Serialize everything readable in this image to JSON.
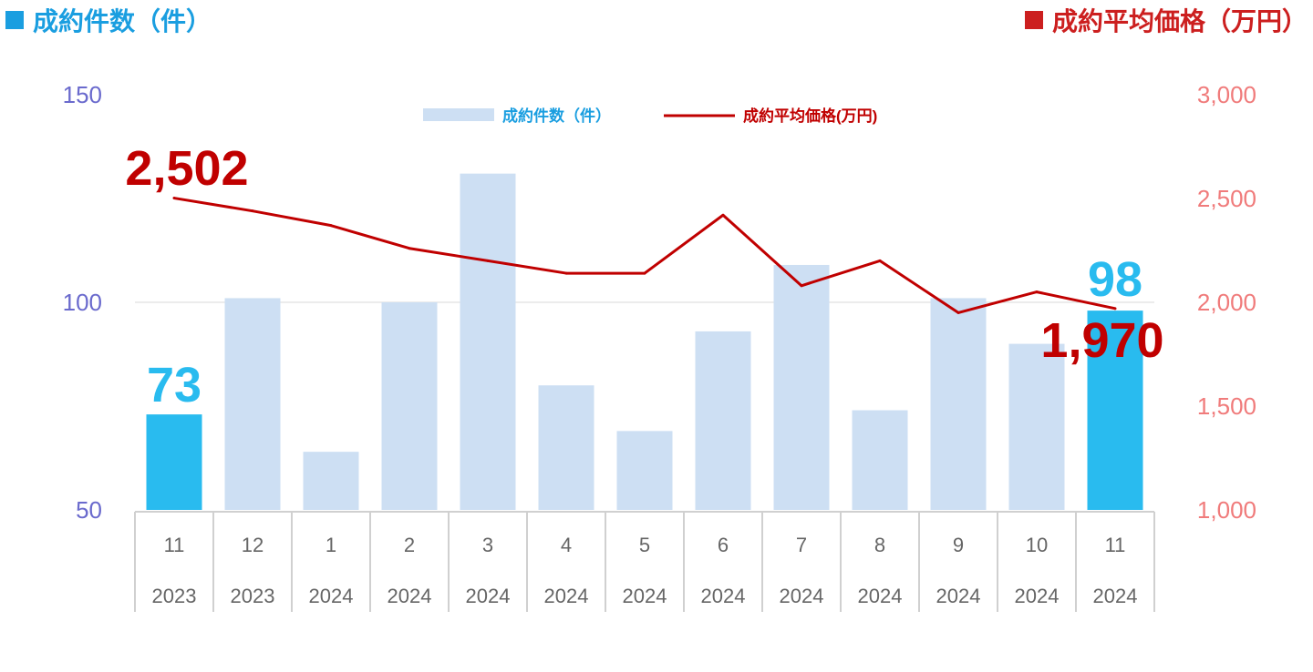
{
  "headers": {
    "left": "成約件数（件）",
    "right": "成約平均価格（万円）"
  },
  "colors": {
    "bar": "#cddff3",
    "bar_highlight": "#29bbef",
    "line": "#c00000",
    "left_axis": "#6a6acd",
    "right_axis": "#f07b7b",
    "left_header": "#1a9ee0",
    "right_header": "#cc1f1f"
  },
  "legend": {
    "bar_label": "成約件数（件）",
    "line_label": "成約平均価格(万円)"
  },
  "chart_data": {
    "type": "bar",
    "categories": [
      "11",
      "12",
      "1",
      "2",
      "3",
      "4",
      "5",
      "6",
      "7",
      "8",
      "9",
      "10",
      "11"
    ],
    "years": [
      "2023",
      "2023",
      "2024",
      "2024",
      "2024",
      "2024",
      "2024",
      "2024",
      "2024",
      "2024",
      "2024",
      "2024",
      "2024"
    ],
    "series": [
      {
        "name": "成約件数（件）",
        "type": "bar",
        "axis": "left",
        "values": [
          73,
          101,
          64,
          100,
          131,
          80,
          69,
          93,
          109,
          74,
          101,
          90,
          98
        ],
        "highlight": [
          0,
          12
        ]
      },
      {
        "name": "成約平均価格(万円)",
        "type": "line",
        "axis": "right",
        "values": [
          2502,
          2440,
          2370,
          2260,
          2200,
          2140,
          2140,
          2420,
          2080,
          2200,
          1950,
          2050,
          1970
        ]
      }
    ],
    "left_axis": {
      "ylim": [
        50,
        150
      ],
      "ticks": [
        "50",
        "100",
        "150"
      ]
    },
    "right_axis": {
      "ylim": [
        1000,
        3000
      ],
      "ticks": [
        "1,000",
        "1,500",
        "2,000",
        "2,500",
        "3,000"
      ]
    },
    "annotations": {
      "first_bar": "73",
      "last_bar": "98",
      "first_line": "2,502",
      "last_line": "1,970"
    },
    "legend_position": "top-center",
    "grid": "horizontal at 100"
  }
}
